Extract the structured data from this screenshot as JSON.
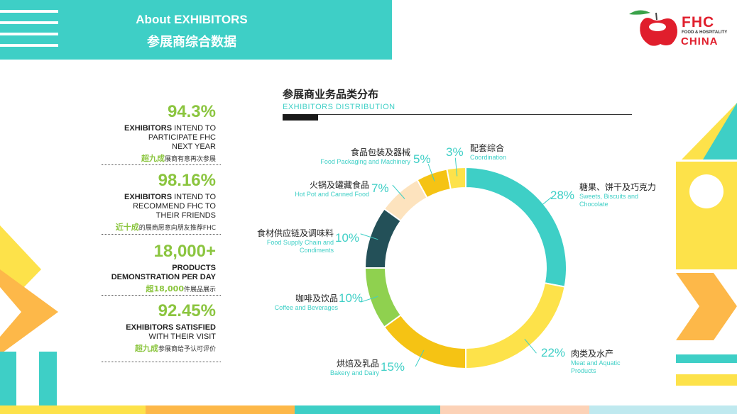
{
  "header": {
    "title_en": "About EXHIBITORS",
    "title_cn": "参展商综合数据"
  },
  "logo": {
    "brand": "FHC",
    "tagline": "FOOD & HOSPITALITY",
    "country": "CHINA"
  },
  "stats": [
    {
      "value": "94.3%",
      "desc_bold": "EXHIBITORS",
      "desc_rest": " INTEND TO",
      "desc_lines": [
        "PARTICIPATE FHC",
        "NEXT YEAR"
      ],
      "cn_highlight": "超九成",
      "cn_rest": "展商有意再次参展"
    },
    {
      "value": "98.16%",
      "desc_bold": "EXHIBITORS",
      "desc_rest": " INTEND TO",
      "desc_lines": [
        "RECOMMEND FHC TO",
        "THEIR FRIENDS"
      ],
      "cn_highlight": "近十成",
      "cn_rest": "的展商愿意向朋友推荐FHC"
    },
    {
      "value": "18,000+",
      "desc_bold": "PRODUCTS",
      "desc_rest": "",
      "desc_lines": [
        "DEMONSTRATION PER DAY"
      ],
      "cn_highlight": "超18,000",
      "cn_rest": "件展品展示"
    },
    {
      "value": "92.45%",
      "desc_bold": "EXHIBITORS SATISFIED",
      "desc_rest": "",
      "desc_lines": [
        "WITH THEIR VISIT"
      ],
      "cn_highlight": "超九成",
      "cn_rest": "参展商给予认可评价"
    }
  ],
  "chart_data": {
    "type": "pie",
    "title": "参展商业务品类分布",
    "subtitle": "EXHIBITORS  DISTRIBUTION",
    "slices": [
      {
        "pct_label": "28%",
        "value": 28,
        "cn": "糖果、饼干及巧克力",
        "en": [
          "Sweets, Biscuits and",
          "Chocolate"
        ],
        "color": "#3ecfc6"
      },
      {
        "pct_label": "22%",
        "value": 22,
        "cn": "肉类及水产",
        "en": [
          "Meat and Aquatic",
          "Products"
        ],
        "color": "#fde24a"
      },
      {
        "pct_label": "15%",
        "value": 15,
        "cn": "烘焙及乳品",
        "en": [
          "Bakery and Dairy"
        ],
        "color": "#f5c314"
      },
      {
        "pct_label": "10%",
        "value": 10,
        "cn": "咖啡及饮品",
        "en": [
          "Coffee and Beverages"
        ],
        "color": "#8fd14f"
      },
      {
        "pct_label": "10%",
        "value": 10,
        "cn": "食材供应链及调味料",
        "en": [
          "Food Supply Chain and",
          "Condiments"
        ],
        "color": "#235058"
      },
      {
        "pct_label": "7%",
        "value": 7,
        "cn": "火锅及罐藏食品",
        "en": [
          "Hot Pot and Canned Food"
        ],
        "color": "#fde3be"
      },
      {
        "pct_label": "5%",
        "value": 5,
        "cn": "食品包装及器械",
        "en": [
          "Food Packaging and Machinery"
        ],
        "color": "#f5c314"
      },
      {
        "pct_label": "3%",
        "value": 3,
        "cn": "配套综合",
        "en": [
          "Coordination"
        ],
        "color": "#fde24a"
      }
    ]
  }
}
